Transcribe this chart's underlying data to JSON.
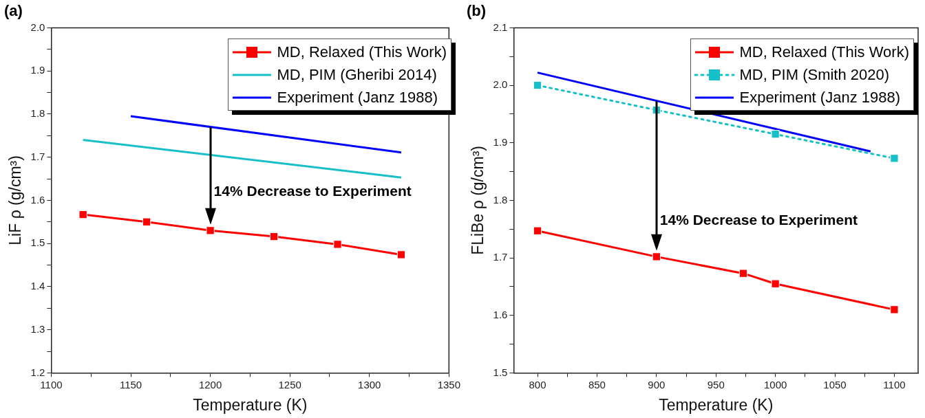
{
  "chart_data": [
    {
      "type": "line",
      "title": "(a)",
      "xlabel": "Temperature (K)",
      "ylabel": "LiF ρ (g/cm³)",
      "xlim": [
        1100,
        1350
      ],
      "xticks": [
        1100,
        {
          "value": 1125,
          "label": null
        },
        1150,
        {
          "value": 1175,
          "label": null
        },
        1200,
        {
          "value": 1225,
          "label": null
        },
        1250,
        {
          "value": 1275,
          "label": null
        },
        1300,
        {
          "value": 1325,
          "label": null
        },
        1350
      ],
      "ylim": [
        1.2,
        2.0
      ],
      "yticks": [
        1.2,
        {
          "value": 1.25,
          "label": null
        },
        1.3,
        {
          "value": 1.35,
          "label": null
        },
        1.4,
        {
          "value": 1.45,
          "label": null
        },
        1.5,
        {
          "value": 1.55,
          "label": null
        },
        1.6,
        {
          "value": 1.65,
          "label": null
        },
        1.7,
        {
          "value": 1.75,
          "label": null
        },
        1.8,
        {
          "value": 1.85,
          "label": null
        },
        1.9,
        {
          "value": 1.95,
          "label": null
        },
        {
          "value": 2.0,
          "label": "2.0"
        }
      ],
      "grid": false,
      "legend": "top right",
      "series": [
        {
          "name": "MD, Relaxed (This Work)",
          "color": "#ff0000",
          "x": [
            1120,
            1160,
            1200,
            1240,
            1280,
            1320
          ],
          "values": [
            1.567,
            1.55,
            1.53,
            1.516,
            1.498,
            1.474
          ],
          "marker": "square",
          "line_style": "solid"
        },
        {
          "name": "MD, PIM (Gheribi 2014)",
          "color": "#17c0c8",
          "x": [
            1120,
            1320
          ],
          "values": [
            1.74,
            1.653
          ],
          "marker": "none",
          "line_style": "solid"
        },
        {
          "name": "Experiment (Janz 1988)",
          "color": "#0000ff",
          "x": [
            1150,
            1320
          ],
          "values": [
            1.795,
            1.711
          ],
          "marker": "none",
          "line_style": "solid"
        }
      ],
      "annotations": [
        {
          "text": "14% Decrease to Experiment",
          "x": 1200,
          "y": 1.53
        }
      ]
    },
    {
      "type": "line",
      "title": "(b)",
      "xlabel": "Temperature (K)",
      "ylabel": "FLiBe ρ (g/cm³)",
      "xlim": [
        780,
        1120
      ],
      "xticks": [
        800,
        {
          "value": 825,
          "label": null
        },
        850,
        {
          "value": 875,
          "label": null
        },
        900,
        {
          "value": 925,
          "label": null
        },
        950,
        {
          "value": 975,
          "label": null
        },
        1000,
        {
          "value": 1025,
          "label": null
        },
        1050,
        {
          "value": 1075,
          "label": null
        },
        1100
      ],
      "ylim": [
        1.5,
        2.1
      ],
      "yticks": [
        1.5,
        {
          "value": 1.55,
          "label": null
        },
        1.6,
        {
          "value": 1.65,
          "label": null
        },
        1.7,
        {
          "value": 1.75,
          "label": null
        },
        1.8,
        {
          "value": 1.85,
          "label": null
        },
        1.9,
        {
          "value": 1.95,
          "label": null
        },
        {
          "value": 2.0,
          "label": "2.0"
        },
        {
          "value": 2.05,
          "label": null
        },
        2.1
      ],
      "grid": false,
      "legend": "top right",
      "series": [
        {
          "name": "MD, Relaxed (This Work)",
          "color": "#ff0000",
          "x": [
            800,
            900,
            973,
            1000,
            1100
          ],
          "values": [
            1.747,
            1.702,
            1.673,
            1.655,
            1.61
          ],
          "marker": "square",
          "line_style": "solid"
        },
        {
          "name": "MD, PIM (Smith 2020)",
          "color": "#17c0c8",
          "x": [
            800,
            900,
            1000,
            1100
          ],
          "values": [
            2.0,
            1.957,
            1.915,
            1.873
          ],
          "marker": "square",
          "line_style": "dotted"
        },
        {
          "name": "Experiment (Janz 1988)",
          "color": "#0000ff",
          "x": [
            800,
            1080
          ],
          "values": [
            2.022,
            1.885
          ],
          "marker": "none",
          "line_style": "solid"
        }
      ],
      "annotations": [
        {
          "text": "14% Decrease to Experiment",
          "x": 900,
          "y": 1.702
        }
      ]
    }
  ]
}
